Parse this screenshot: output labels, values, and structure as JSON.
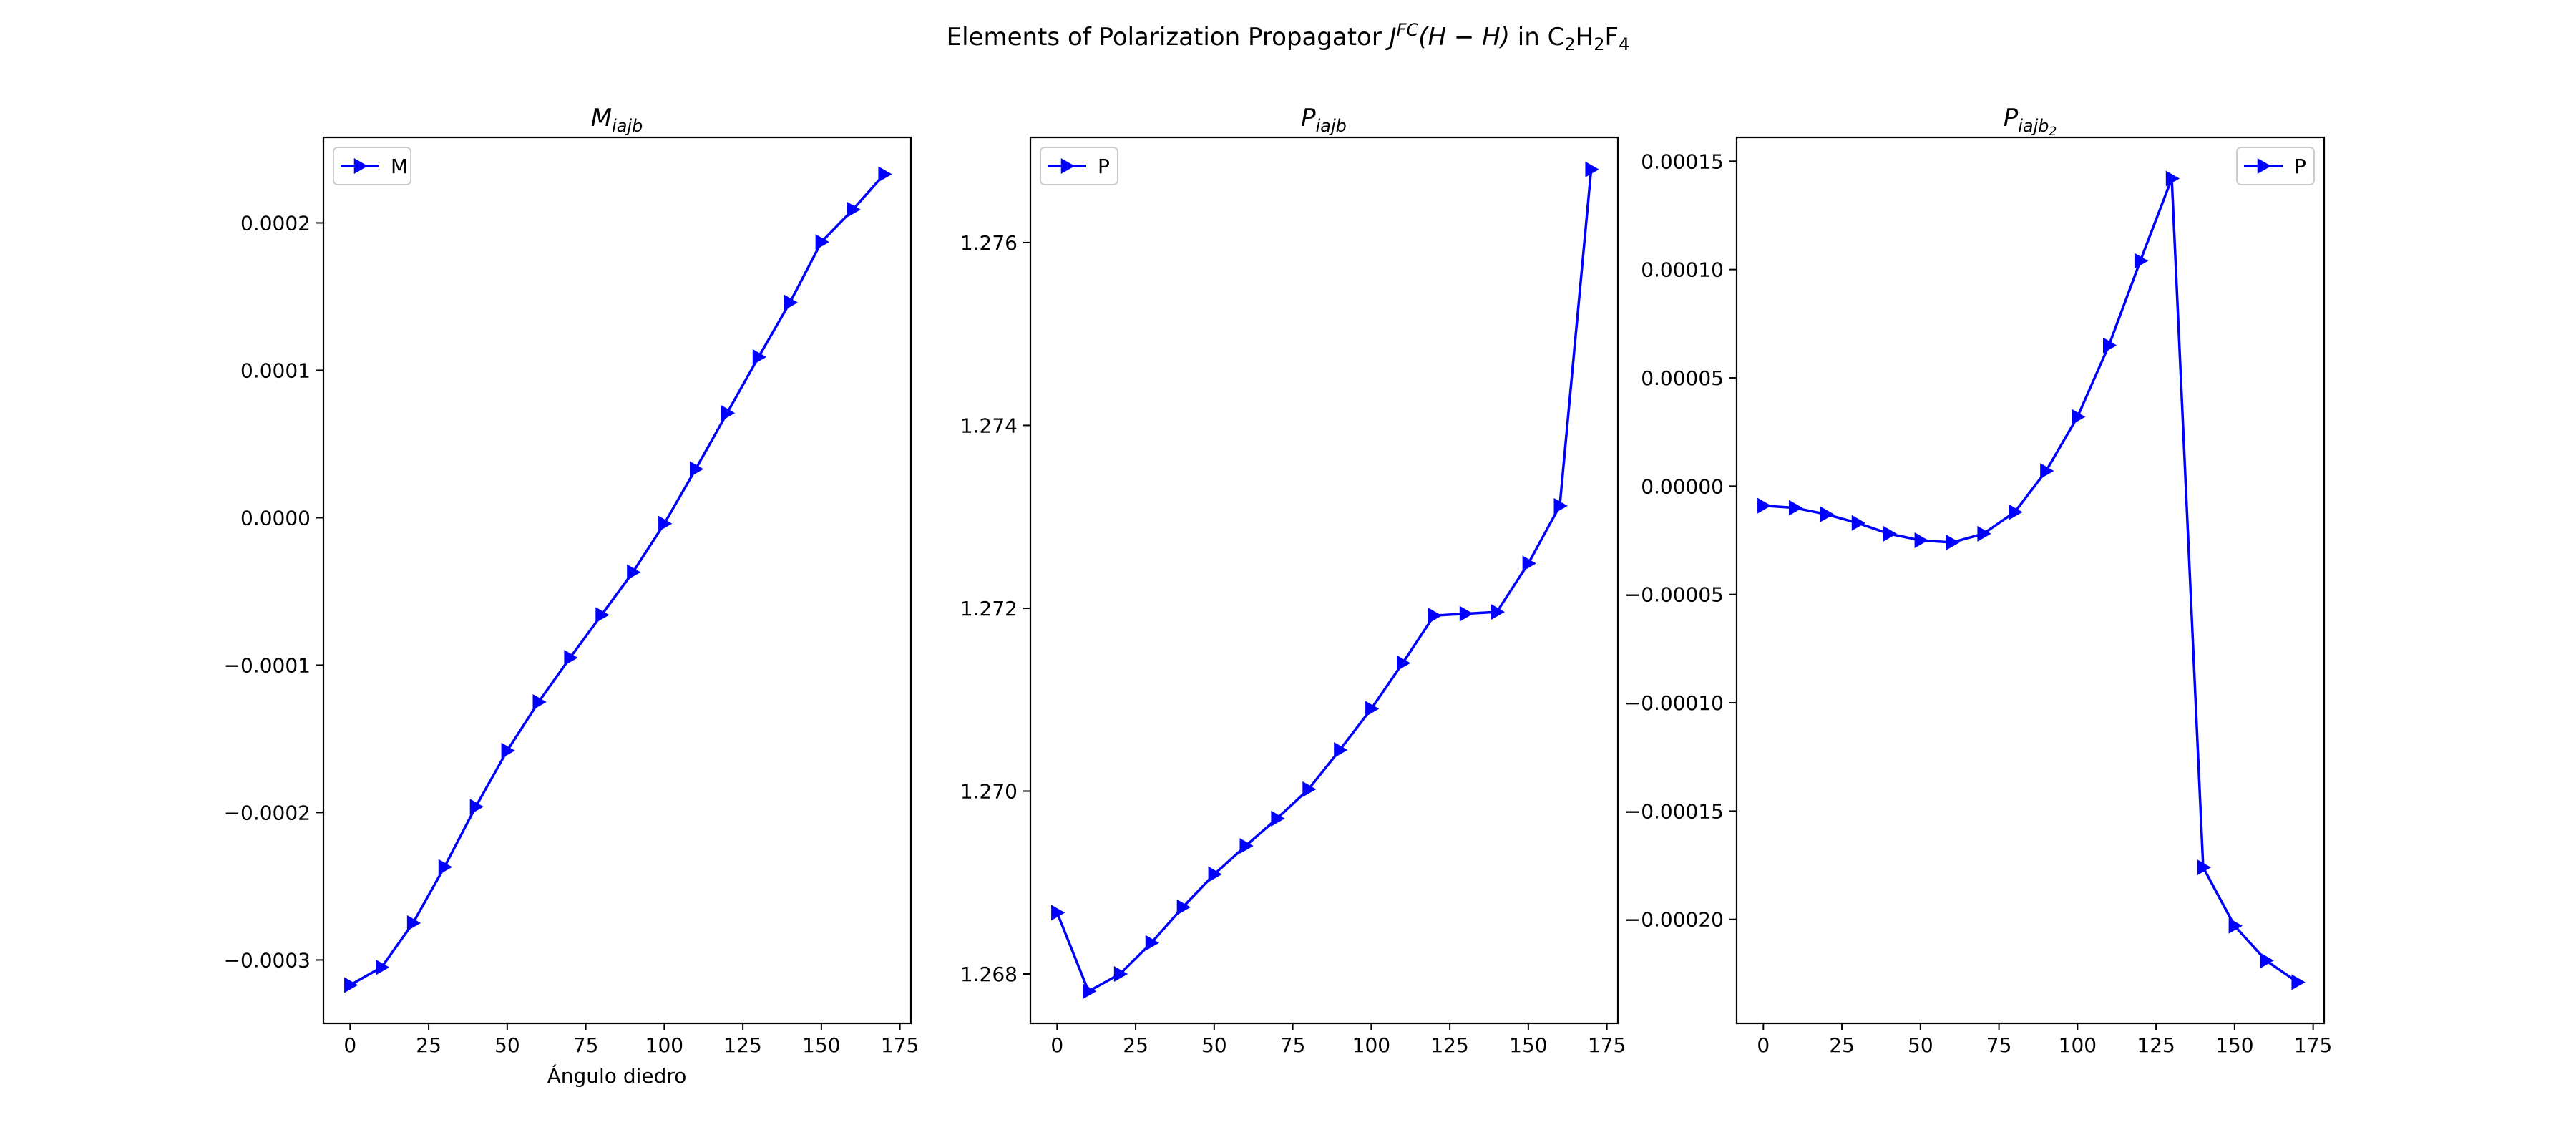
{
  "figure": {
    "suptitle_prefix": "Elements of Polarization Propagator ",
    "suptitle_J": "J",
    "suptitle_FC": "FC",
    "suptitle_HH": "(H − H)",
    "suptitle_in": " in C",
    "suptitle_sub1": "2",
    "suptitle_H": "H",
    "suptitle_sub2": "2",
    "suptitle_F": "F",
    "suptitle_sub3": "4"
  },
  "chart_data": [
    {
      "type": "line",
      "title_main": "M",
      "title_sub": "iajb",
      "xlabel": "Ángulo diedro",
      "ylabel": "",
      "xlim": [
        -8.5,
        178.5
      ],
      "ylim": [
        -0.000343,
        0.000258
      ],
      "grid": false,
      "legend_position": "top-left",
      "marker": "triangle-right",
      "color": "#0000ff",
      "x_ticks": [
        0,
        25,
        50,
        75,
        100,
        125,
        150,
        175
      ],
      "x_tick_labels": [
        "0",
        "25",
        "50",
        "75",
        "100",
        "125",
        "150",
        "175"
      ],
      "y_ticks": [
        -0.0003,
        -0.0002,
        -0.0001,
        0.0,
        0.0001,
        0.0002
      ],
      "y_tick_labels": [
        "−0.0003",
        "−0.0002",
        "−0.0001",
        "0.0000",
        "0.0001",
        "0.0002"
      ],
      "series": [
        {
          "name": "M",
          "x": [
            0,
            10,
            20,
            30,
            40,
            50,
            60,
            70,
            80,
            90,
            100,
            110,
            120,
            130,
            140,
            150,
            160,
            170
          ],
          "y": [
            -0.000317,
            -0.000305,
            -0.000275,
            -0.000237,
            -0.000196,
            -0.000158,
            -0.000125,
            -9.5e-05,
            -6.6e-05,
            -3.7e-05,
            -4e-06,
            3.3e-05,
            7.1e-05,
            0.000109,
            0.000146,
            0.000187,
            0.000209,
            0.000233
          ]
        }
      ]
    },
    {
      "type": "line",
      "title_main": "P",
      "title_sub": "iajb",
      "xlabel": "",
      "ylabel": "",
      "xlim": [
        -8.5,
        178.5
      ],
      "ylim": [
        1.26746,
        1.27715
      ],
      "grid": false,
      "legend_position": "top-left",
      "marker": "triangle-right",
      "color": "#0000ff",
      "x_ticks": [
        0,
        25,
        50,
        75,
        100,
        125,
        150,
        175
      ],
      "x_tick_labels": [
        "0",
        "25",
        "50",
        "75",
        "100",
        "125",
        "150",
        "175"
      ],
      "y_ticks": [
        1.268,
        1.27,
        1.272,
        1.274,
        1.276
      ],
      "y_tick_labels": [
        "1.268",
        "1.270",
        "1.272",
        "1.274",
        "1.276"
      ],
      "series": [
        {
          "name": "P",
          "x": [
            0,
            10,
            20,
            30,
            40,
            50,
            60,
            70,
            80,
            90,
            100,
            110,
            120,
            130,
            140,
            150,
            160,
            170
          ],
          "y": [
            1.26867,
            1.26781,
            1.268,
            1.26834,
            1.26873,
            1.26909,
            1.2694,
            1.2697,
            1.27002,
            1.27045,
            1.2709,
            1.2714,
            1.27192,
            1.27194,
            1.27196,
            1.27249,
            1.27312,
            1.2768
          ]
        }
      ]
    },
    {
      "type": "line",
      "title_main": "P",
      "title_sub": "iajb",
      "title_subsub": "2",
      "xlabel": "",
      "ylabel": "",
      "xlim": [
        -8.5,
        178.5
      ],
      "ylim": [
        -0.000248,
        0.000161
      ],
      "grid": false,
      "legend_position": "top-right",
      "marker": "triangle-right",
      "color": "#0000ff",
      "x_ticks": [
        0,
        25,
        50,
        75,
        100,
        125,
        150,
        175
      ],
      "x_tick_labels": [
        "0",
        "25",
        "50",
        "75",
        "100",
        "125",
        "150",
        "175"
      ],
      "y_ticks": [
        -0.0002,
        -0.00015,
        -0.0001,
        -5e-05,
        0.0,
        5e-05,
        0.0001,
        0.00015
      ],
      "y_tick_labels": [
        "−0.00020",
        "−0.00015",
        "−0.00010",
        "−0.00005",
        "0.00000",
        "0.00005",
        "0.00010",
        "0.00015"
      ],
      "series": [
        {
          "name": "P",
          "x": [
            0,
            10,
            20,
            30,
            40,
            50,
            60,
            70,
            80,
            90,
            100,
            110,
            120,
            130,
            140,
            150,
            160,
            170
          ],
          "y": [
            -9e-06,
            -1e-05,
            -1.3e-05,
            -1.7e-05,
            -2.2e-05,
            -2.5e-05,
            -2.6e-05,
            -2.2e-05,
            -1.2e-05,
            7e-06,
            3.2e-05,
            6.5e-05,
            0.000104,
            0.000142,
            -0.000176,
            -0.000203,
            -0.000219,
            -0.000229
          ]
        }
      ]
    }
  ]
}
